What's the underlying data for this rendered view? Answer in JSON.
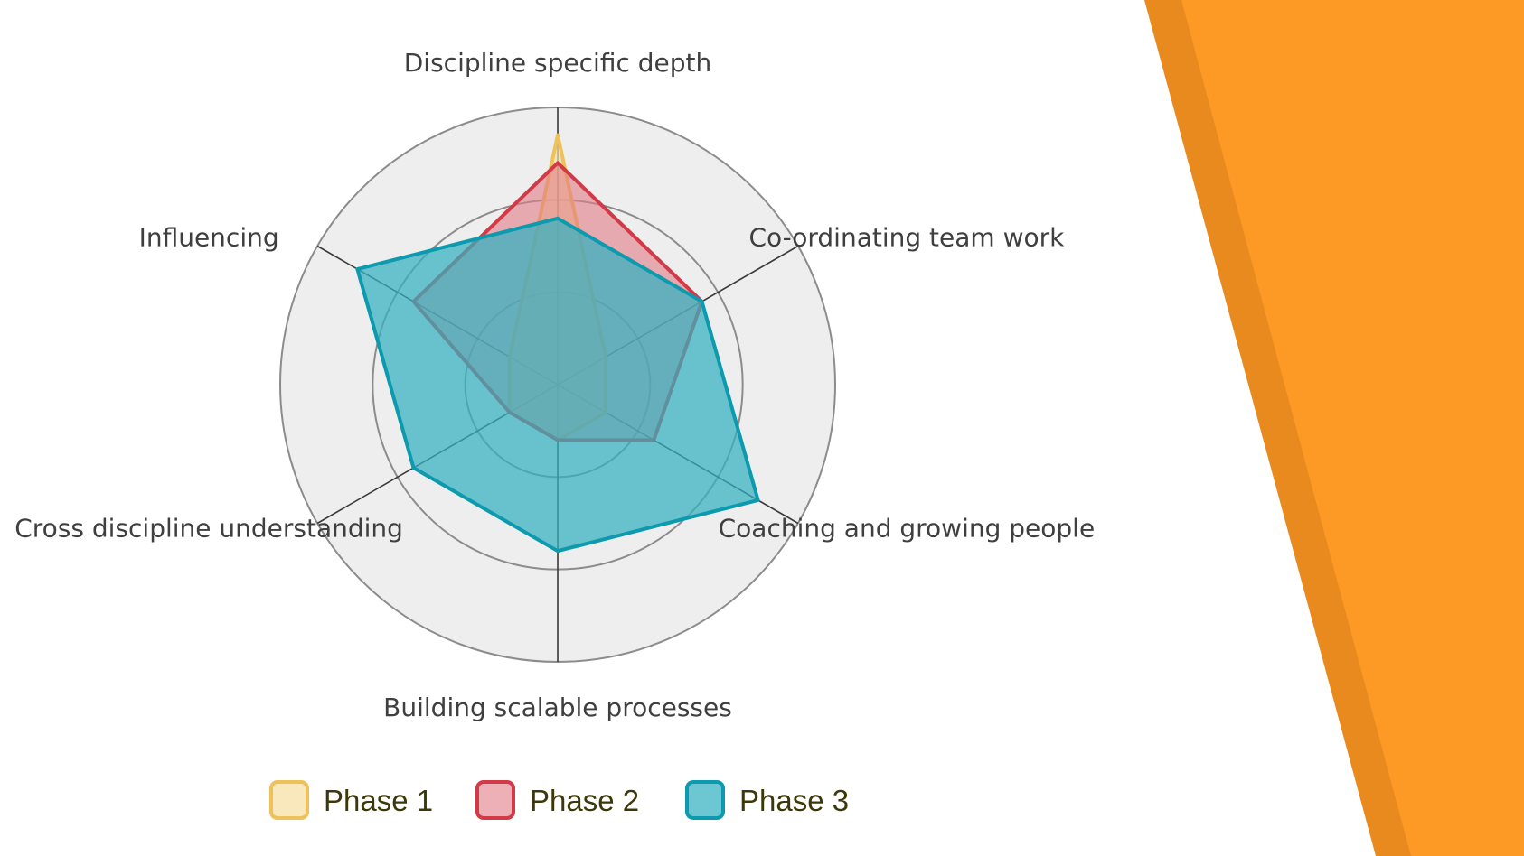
{
  "colors": {
    "deco_dark": "#E98A1F",
    "deco_light": "#FD9A25",
    "grid_fill": "#EEEEEE",
    "grid_line": "#8C8C8C",
    "spoke_line": "#3A3A3A"
  },
  "chart_data": {
    "type": "radar",
    "title": "",
    "axes": [
      "Discipline specific depth",
      "Co-ordinating team work",
      "Coaching and growing people",
      "Building scalable processes",
      "Cross discipline understanding",
      "Influencing"
    ],
    "rmax": 3,
    "rings": [
      1,
      2,
      3
    ],
    "grid": true,
    "legend_position": "bottom",
    "series": [
      {
        "name": "Phase 1",
        "values": [
          2.7,
          0.6,
          0.6,
          0.6,
          0.6,
          0.6
        ],
        "color": "#EFC15A",
        "fill": "#F6DE9F",
        "fill_opacity": 0.7
      },
      {
        "name": "Phase 2",
        "values": [
          2.4,
          1.8,
          1.2,
          0.6,
          0.6,
          1.8
        ],
        "color": "#D23A47",
        "fill": "#E17C85",
        "fill_opacity": 0.6
      },
      {
        "name": "Phase 3",
        "values": [
          1.8,
          1.8,
          2.5,
          1.8,
          1.8,
          2.5
        ],
        "color": "#0E9AAE",
        "fill": "#33B1C0",
        "fill_opacity": 0.72
      }
    ]
  }
}
